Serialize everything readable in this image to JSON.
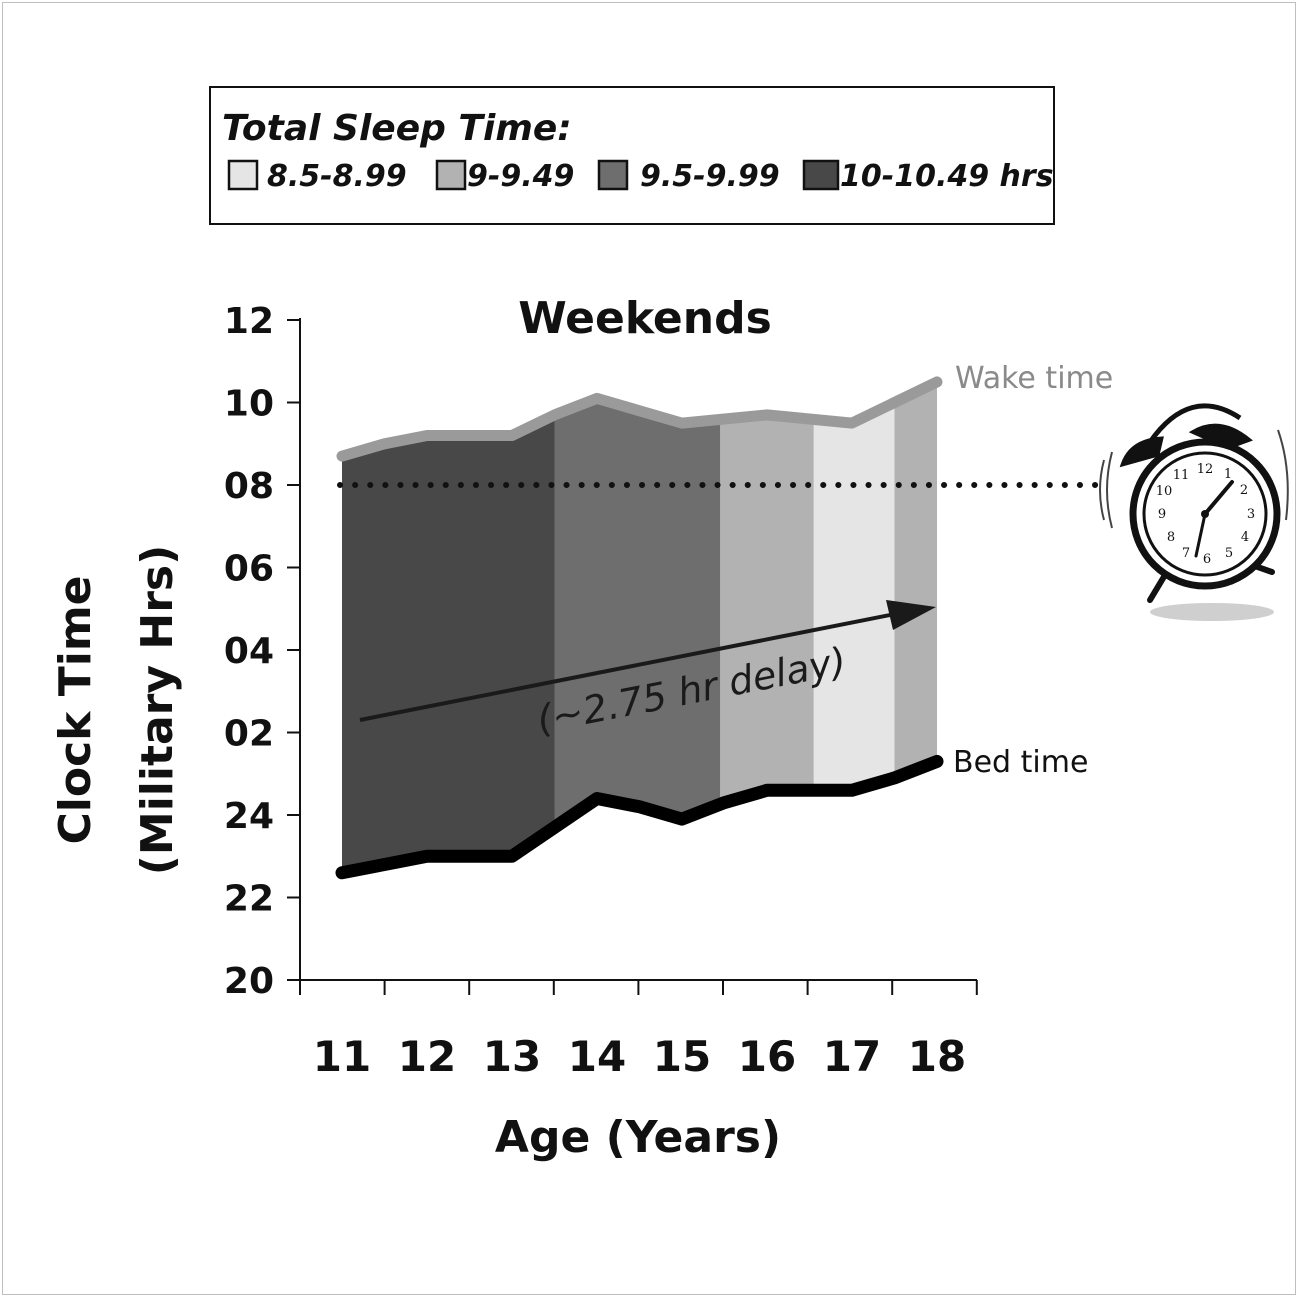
{
  "legend": {
    "title": "Total Sleep Time:",
    "items": [
      {
        "label": "8.5-8.99",
        "color": "#e5e5e5"
      },
      {
        "label": "9-9.49",
        "color": "#b2b2b2"
      },
      {
        "label": "9.5-9.99",
        "color": "#6e6e6e"
      },
      {
        "label": "10-10.49 hrs",
        "color": "#484848"
      }
    ]
  },
  "chart_data": {
    "type": "area",
    "title": "Weekends",
    "xlabel": "Age (Years)",
    "ylabel_line1": "Clock Time",
    "ylabel_line2": "(Military Hrs)",
    "categories": [
      "11",
      "12",
      "13",
      "14",
      "15",
      "16",
      "17",
      "18"
    ],
    "y_ticks": [
      "20",
      "22",
      "24",
      "02",
      "04",
      "06",
      "08",
      "10",
      "12"
    ],
    "ylim_hours_after_20": [
      0,
      16
    ],
    "x": [
      11,
      11.5,
      12,
      12.5,
      13,
      13.5,
      14,
      14.5,
      15,
      15.5,
      16,
      16.5,
      17,
      17.5,
      18
    ],
    "series": [
      {
        "name": "Wake time",
        "color": "#9a9a9a",
        "hours_after_20": [
          12.7,
          13.0,
          13.2,
          13.2,
          13.2,
          13.7,
          14.1,
          13.8,
          13.5,
          13.6,
          13.7,
          13.6,
          13.5,
          14.0,
          14.5
        ]
      },
      {
        "name": "Bed time",
        "color": "#000000",
        "hours_after_20": [
          2.6,
          2.8,
          3.0,
          3.0,
          3.0,
          3.7,
          4.4,
          4.2,
          3.9,
          4.3,
          4.6,
          4.6,
          4.6,
          4.9,
          5.3
        ]
      }
    ],
    "bands": [
      {
        "from_x": 11,
        "to_x": 13.5,
        "tst": "10-10.49 hrs",
        "color": "#484848"
      },
      {
        "from_x": 13.5,
        "to_x": 15.45,
        "tst": "9.5-9.99",
        "color": "#6e6e6e"
      },
      {
        "from_x": 15.45,
        "to_x": 16.55,
        "tst": "9-9.49",
        "color": "#b2b2b2"
      },
      {
        "from_x": 16.55,
        "to_x": 17.5,
        "tst": "8.5-8.99",
        "color": "#e5e5e5"
      },
      {
        "from_x": 17.5,
        "to_x": 18,
        "tst": "9-9.49",
        "color": "#b2b2b2"
      }
    ],
    "reference_line": {
      "value_hours_after_20": 12,
      "style": "dotted"
    },
    "annotations": {
      "wake": "Wake time",
      "bed": "Bed time",
      "delay": "(~2.75 hr delay)"
    }
  }
}
